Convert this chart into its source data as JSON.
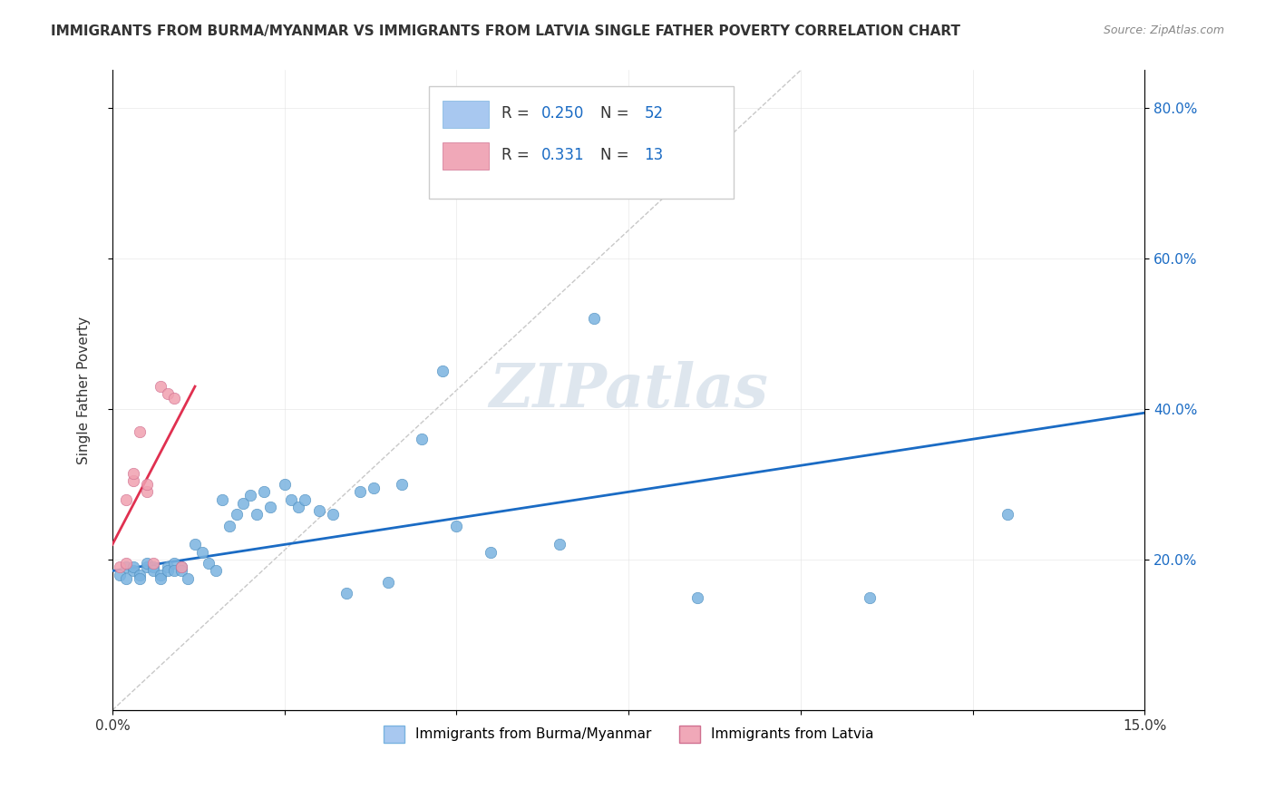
{
  "title": "IMMIGRANTS FROM BURMA/MYANMAR VS IMMIGRANTS FROM LATVIA SINGLE FATHER POVERTY CORRELATION CHART",
  "source": "Source: ZipAtlas.com",
  "ylabel": "Single Father Poverty",
  "xlim": [
    0.0,
    0.15
  ],
  "ylim": [
    0.0,
    0.85
  ],
  "right_yticks": [
    0.2,
    0.4,
    0.6,
    0.8
  ],
  "right_yticklabels": [
    "20.0%",
    "40.0%",
    "60.0%",
    "80.0%"
  ],
  "blue_scatter_x": [
    0.001,
    0.002,
    0.002,
    0.003,
    0.003,
    0.004,
    0.004,
    0.005,
    0.005,
    0.006,
    0.006,
    0.007,
    0.007,
    0.008,
    0.008,
    0.009,
    0.009,
    0.01,
    0.01,
    0.011,
    0.012,
    0.013,
    0.014,
    0.015,
    0.016,
    0.017,
    0.018,
    0.019,
    0.02,
    0.021,
    0.022,
    0.023,
    0.025,
    0.026,
    0.027,
    0.028,
    0.03,
    0.032,
    0.034,
    0.036,
    0.038,
    0.04,
    0.042,
    0.045,
    0.048,
    0.05,
    0.055,
    0.065,
    0.07,
    0.085,
    0.11,
    0.13
  ],
  "blue_scatter_y": [
    0.18,
    0.19,
    0.175,
    0.185,
    0.19,
    0.18,
    0.175,
    0.19,
    0.195,
    0.19,
    0.185,
    0.18,
    0.175,
    0.19,
    0.185,
    0.195,
    0.185,
    0.19,
    0.185,
    0.175,
    0.22,
    0.21,
    0.195,
    0.185,
    0.28,
    0.245,
    0.26,
    0.275,
    0.285,
    0.26,
    0.29,
    0.27,
    0.3,
    0.28,
    0.27,
    0.28,
    0.265,
    0.26,
    0.155,
    0.29,
    0.295,
    0.17,
    0.3,
    0.36,
    0.45,
    0.245,
    0.21,
    0.22,
    0.52,
    0.15,
    0.15,
    0.26
  ],
  "pink_scatter_x": [
    0.001,
    0.002,
    0.002,
    0.003,
    0.003,
    0.004,
    0.005,
    0.005,
    0.006,
    0.007,
    0.008,
    0.009,
    0.01
  ],
  "pink_scatter_y": [
    0.19,
    0.195,
    0.28,
    0.305,
    0.315,
    0.37,
    0.29,
    0.3,
    0.195,
    0.43,
    0.42,
    0.415,
    0.19
  ],
  "blue_line_x": [
    0.0,
    0.15
  ],
  "blue_line_y": [
    0.185,
    0.395
  ],
  "pink_line_x": [
    0.0,
    0.012
  ],
  "pink_line_y": [
    0.22,
    0.43
  ],
  "diag_line_x": [
    0.0,
    0.1
  ],
  "diag_line_y": [
    0.0,
    0.85
  ],
  "scatter_color_blue": "#7ab3e0",
  "scatter_color_pink": "#f0a0b0",
  "line_color_blue": "#1a6bc4",
  "line_color_pink": "#e03050",
  "diag_color": "#c8c8c8",
  "watermark": "ZIPatlas",
  "watermark_color": "#d0dce8"
}
